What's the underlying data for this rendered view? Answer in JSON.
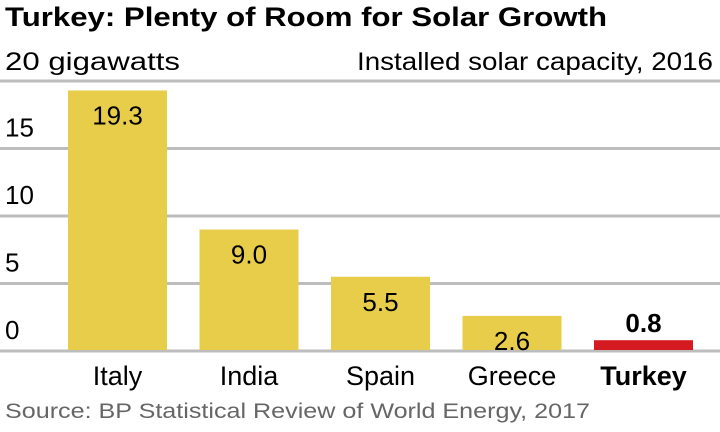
{
  "chart_data": {
    "type": "bar",
    "title": "Turkey: Plenty of Room for Solar Growth",
    "subtitle": "Installed solar capacity, 2016",
    "ylabel": "20 gigawatts",
    "xlabel": "",
    "categories": [
      "Italy",
      "India",
      "Spain",
      "Greece",
      "Turkey"
    ],
    "values": [
      19.3,
      9.0,
      5.5,
      2.6,
      0.8
    ],
    "value_labels": [
      "19.3",
      "9.0",
      "5.5",
      "2.6",
      "0.8"
    ],
    "highlight": "Turkey",
    "ylim": [
      0,
      20
    ],
    "yticks": [
      0,
      5,
      10,
      15
    ],
    "ytick_labels": [
      "0",
      "5",
      "10",
      "15"
    ],
    "grid": true,
    "source": "Source: BP Statistical Review of World Energy, 2017",
    "colors": {
      "bar": "#E8CD4A",
      "highlight": "#D61A22",
      "grid": "#BDBDBD",
      "text": "#000000",
      "source": "#666666"
    }
  }
}
